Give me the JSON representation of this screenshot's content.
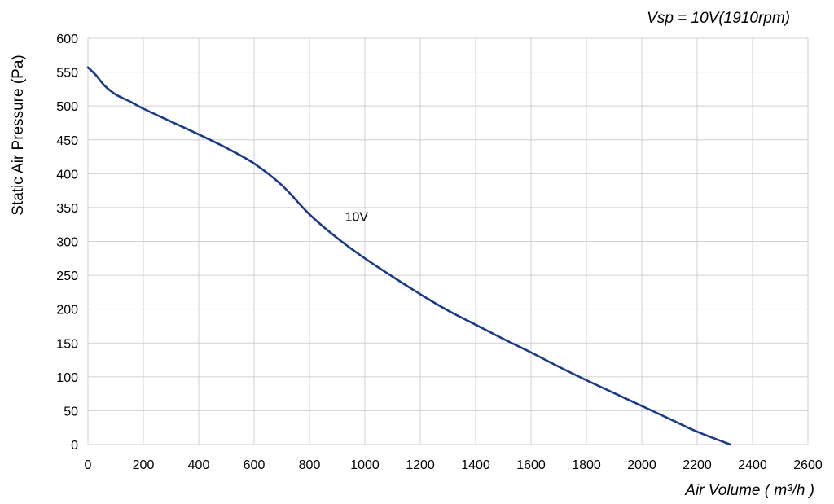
{
  "chart_data": {
    "type": "line",
    "annotation_top_right": "Vsp = 10V(1910rpm)",
    "xlabel": "Air Volume ( m³/h )",
    "ylabel": "Static Air Pressure  (Pa)",
    "xlim": [
      0,
      2600
    ],
    "ylim": [
      0,
      600
    ],
    "x_ticks": [
      0,
      200,
      400,
      600,
      800,
      1000,
      1200,
      1400,
      1600,
      1800,
      2000,
      2200,
      2400,
      2600
    ],
    "y_ticks": [
      0,
      50,
      100,
      150,
      200,
      250,
      300,
      350,
      400,
      450,
      500,
      550,
      600
    ],
    "grid": true,
    "series": [
      {
        "name": "10V",
        "color": "#1a3a8a",
        "points": [
          [
            0,
            557
          ],
          [
            30,
            545
          ],
          [
            60,
            530
          ],
          [
            100,
            517
          ],
          [
            150,
            507
          ],
          [
            200,
            496
          ],
          [
            300,
            477
          ],
          [
            400,
            458
          ],
          [
            500,
            438
          ],
          [
            600,
            415
          ],
          [
            700,
            383
          ],
          [
            800,
            340
          ],
          [
            900,
            305
          ],
          [
            1000,
            275
          ],
          [
            1100,
            248
          ],
          [
            1200,
            222
          ],
          [
            1300,
            198
          ],
          [
            1400,
            177
          ],
          [
            1500,
            156
          ],
          [
            1600,
            136
          ],
          [
            1700,
            115
          ],
          [
            1800,
            95
          ],
          [
            1900,
            76
          ],
          [
            2000,
            57
          ],
          [
            2100,
            38
          ],
          [
            2200,
            19
          ],
          [
            2320,
            0
          ]
        ]
      }
    ],
    "annotations": [
      {
        "text": "10V",
        "x": 970,
        "y": 330
      }
    ]
  }
}
